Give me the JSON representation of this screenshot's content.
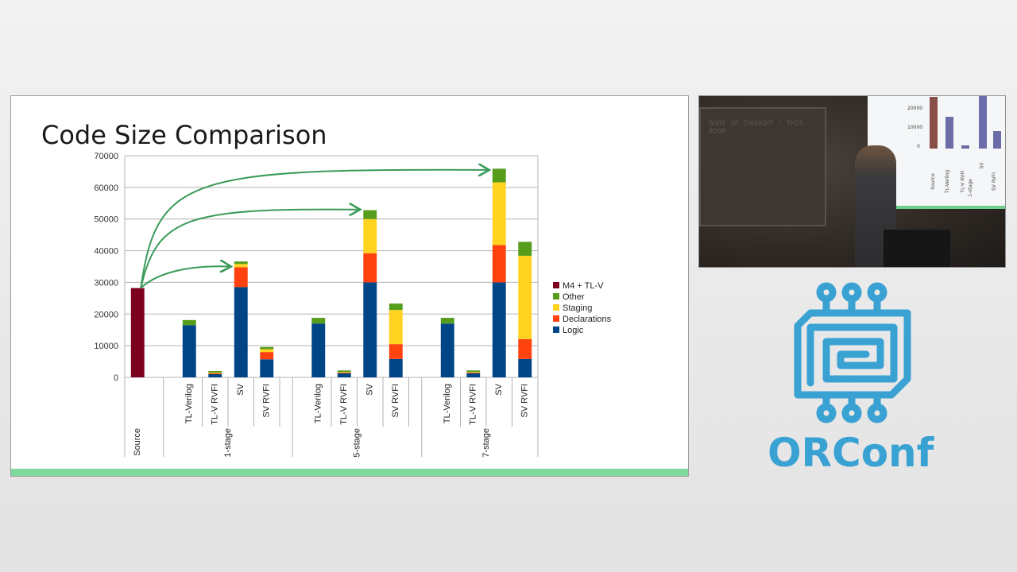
{
  "slide": {
    "title": "Code Size Comparison"
  },
  "chart_data": {
    "type": "bar",
    "stacked": true,
    "ylim": [
      0,
      70000
    ],
    "yticks": [
      0,
      10000,
      20000,
      30000,
      40000,
      50000,
      60000,
      70000
    ],
    "grid": true,
    "legend_position": "right",
    "groups": [
      {
        "label": "Source",
        "categories": [
          "Source"
        ]
      },
      {
        "label": "1-stage",
        "categories": [
          "TL-Verilog",
          "TL-V RVFI",
          "SV",
          "SV RVFI"
        ]
      },
      {
        "label": "5-stage",
        "categories": [
          "TL-Verilog",
          "TL-V RVFI",
          "SV",
          "SV RVFI"
        ]
      },
      {
        "label": "7-stage",
        "categories": [
          "TL-Verilog",
          "TL-V RVFI",
          "SV",
          "SV RVFI"
        ]
      }
    ],
    "series": [
      {
        "name": "Logic",
        "color": "#004586",
        "values": [
          0,
          16500,
          1000,
          28500,
          5700,
          17000,
          1300,
          30000,
          5800,
          17000,
          1300,
          30000,
          5800
        ]
      },
      {
        "name": "Declarations",
        "color": "#ff420e",
        "values": [
          0,
          0,
          300,
          6300,
          2300,
          0,
          200,
          9200,
          4700,
          0,
          200,
          11800,
          6300
        ]
      },
      {
        "name": "Staging",
        "color": "#ffd320",
        "values": [
          0,
          0,
          200,
          1000,
          900,
          0,
          200,
          10800,
          10800,
          0,
          200,
          19800,
          26300
        ]
      },
      {
        "name": "Other",
        "color": "#579d1c",
        "values": [
          0,
          1600,
          500,
          800,
          700,
          1800,
          500,
          2800,
          2000,
          1800,
          500,
          4300,
          4400
        ]
      },
      {
        "name": "M4 + TL-V",
        "color": "#7e0021",
        "values": [
          28200,
          0,
          0,
          0,
          0,
          0,
          0,
          0,
          0,
          0,
          0,
          0,
          0
        ]
      }
    ],
    "legend_order": [
      "M4 + TL-V",
      "Other",
      "Staging",
      "Declarations",
      "Logic"
    ],
    "annotations": [
      {
        "type": "arrow",
        "from_category": 0,
        "from_value": 28200,
        "to_category": 3,
        "to_value": 35000
      },
      {
        "type": "arrow",
        "from_category": 0,
        "from_value": 28200,
        "to_category": 7,
        "to_value": 53000
      },
      {
        "type": "arrow",
        "from_category": 0,
        "from_value": 28200,
        "to_category": 11,
        "to_value": 65500
      }
    ]
  },
  "camera_inset": {
    "board_text": "BODY OF THOUGHT / THIS ROOM ...",
    "screen_ticks": [
      "20000",
      "10000",
      "0"
    ],
    "screen_labels": [
      "Source",
      "TL-Verilog",
      "TL-V RVFI",
      "SV",
      "SV RVFI"
    ],
    "screen_group": "1-stage"
  },
  "logo": {
    "text": "ORConf",
    "color": "#39a2d3"
  }
}
